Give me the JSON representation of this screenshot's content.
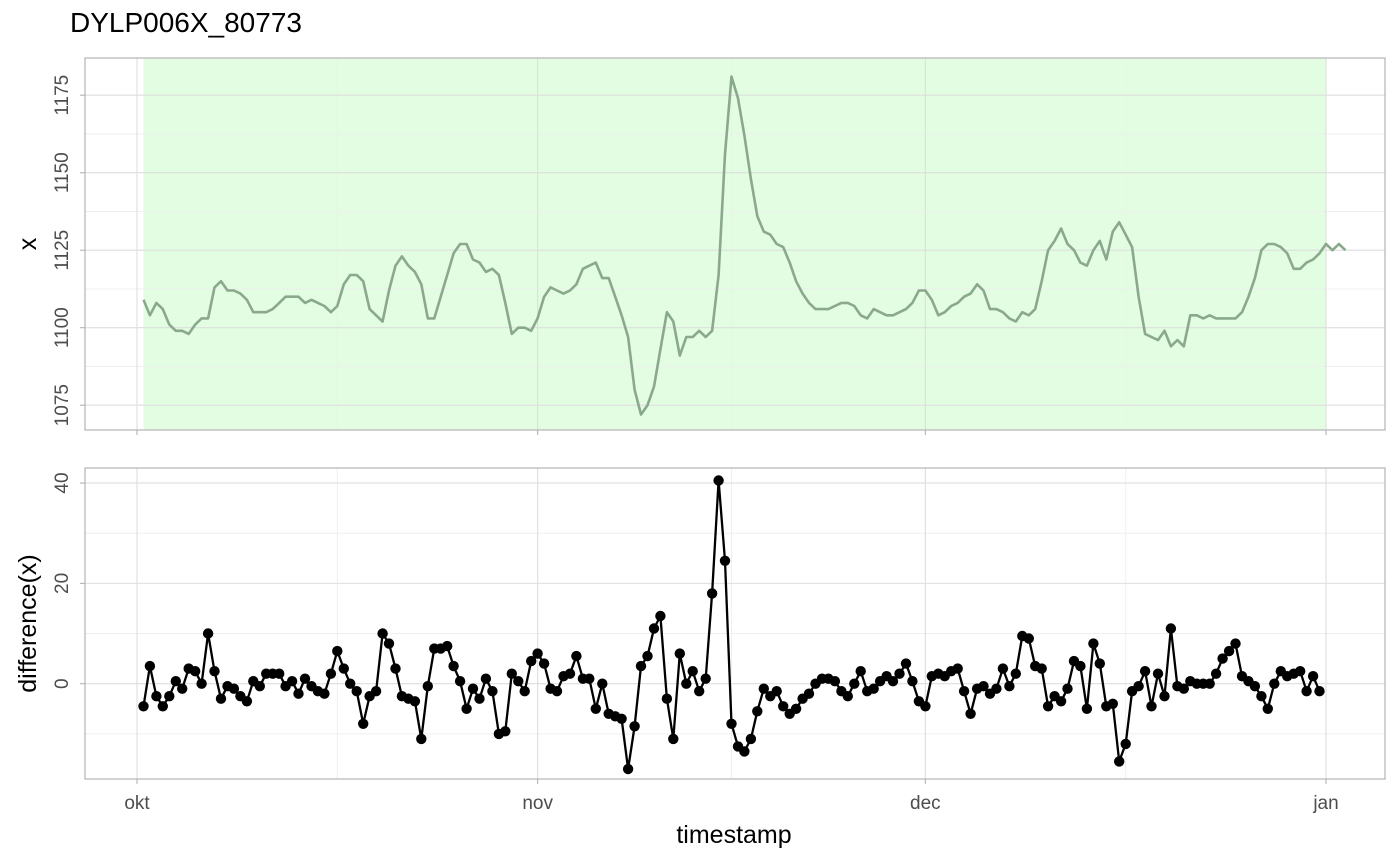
{
  "chart_data": {
    "type": "line",
    "title": "DYLP006X_80773",
    "xlabel": "timestamp",
    "x_ticks": [
      {
        "label": "okt",
        "date": "2023-10-01"
      },
      {
        "label": "nov",
        "date": "2023-11-01"
      },
      {
        "label": "dec",
        "date": "2023-12-01"
      },
      {
        "label": "jan",
        "date": "2024-01-01"
      }
    ],
    "x_start": "2023-10-01T12:00",
    "x_step_hours": 12,
    "grid": true,
    "colors": {
      "line": "#8aa98a",
      "shade": "#e2fde2",
      "points": "#000000",
      "grid_major": "#dedede",
      "grid_minor": "#efefef",
      "panel_border": "#b3b3b3",
      "tick_text": "#4d4d4d"
    },
    "panels": [
      {
        "ylabel": "x",
        "ylim": [
          1067,
          1187
        ],
        "y_ticks": [
          1075,
          1100,
          1125,
          1150,
          1175
        ],
        "shaded_region": {
          "from": "2023-10-01T12:00",
          "to": "2024-01-01T00:00"
        },
        "series": [
          {
            "values": [
              1109,
              1104,
              1108,
              1106,
              1101,
              1099,
              1099,
              1098,
              1101,
              1103,
              1103,
              1113,
              1115,
              1112,
              1112,
              1111,
              1109,
              1105,
              1105,
              1105,
              1106,
              1108,
              1110,
              1110,
              1110,
              1108,
              1109,
              1108,
              1107,
              1105,
              1107,
              1114,
              1117,
              1117,
              1115,
              1106,
              1104,
              1102,
              1112,
              1120,
              1123,
              1120,
              1118,
              1114,
              1103,
              1103,
              1110,
              1117,
              1124,
              1127,
              1127,
              1122,
              1121,
              1118,
              1119,
              1117,
              1108,
              1098,
              1100,
              1100,
              1099,
              1103,
              1110,
              1113,
              1112,
              1111,
              1112,
              1114,
              1119,
              1120,
              1121,
              1116,
              1116,
              1110,
              1104,
              1097,
              1080,
              1072,
              1075,
              1081,
              1093,
              1105,
              1102,
              1091,
              1097,
              1097,
              1099,
              1097,
              1099,
              1117,
              1156,
              1181,
              1174,
              1162,
              1148,
              1136,
              1131,
              1130,
              1127,
              1126,
              1121,
              1115,
              1111,
              1108,
              1106,
              1106,
              1106,
              1107,
              1108,
              1108,
              1107,
              1104,
              1103,
              1106,
              1105,
              1104,
              1104,
              1105,
              1106,
              1108,
              1112,
              1112,
              1109,
              1104,
              1105,
              1107,
              1108,
              1110,
              1111,
              1114,
              1112,
              1106,
              1106,
              1105,
              1103,
              1102,
              1105,
              1104,
              1106,
              1115,
              1125,
              1128,
              1132,
              1127,
              1125,
              1121,
              1120,
              1125,
              1128,
              1122,
              1131,
              1134,
              1130,
              1126,
              1110,
              1098,
              1097,
              1096,
              1099,
              1094,
              1096,
              1094,
              1104,
              1104,
              1103,
              1104,
              1103,
              1103,
              1103,
              1103,
              1105,
              1110,
              1116,
              1125,
              1127,
              1127,
              1126,
              1124,
              1119,
              1119,
              1121,
              1122,
              1124,
              1127,
              1125,
              1127,
              1125
            ]
          }
        ]
      },
      {
        "ylabel": "difference(x)",
        "ylim": [
          -19,
          43
        ],
        "y_ticks": [
          0,
          20,
          40
        ],
        "series": [
          {
            "values": [
              -4.5,
              3.5,
              -2.5,
              -4.5,
              -2.5,
              0.5,
              -1,
              3,
              2.5,
              0,
              10,
              2.5,
              -3,
              -0.5,
              -1,
              -2.5,
              -3.5,
              0.5,
              -0.5,
              2,
              2,
              2,
              -0.5,
              0.5,
              -2,
              1,
              -0.5,
              -1.5,
              -2,
              2,
              6.5,
              3,
              0,
              -1.5,
              -8,
              -2.5,
              -1.5,
              10,
              8,
              3,
              -2.5,
              -3,
              -3.5,
              -11,
              -0.5,
              7,
              7,
              7.5,
              3.5,
              0.5,
              -5,
              -1,
              -3,
              1,
              -1.5,
              -10,
              -9.5,
              2,
              0.5,
              -1.5,
              4.5,
              6,
              4,
              -1,
              -1.5,
              1.5,
              2,
              5.5,
              1,
              1,
              -5,
              0,
              -6,
              -6.5,
              -7,
              -17,
              -8.5,
              3.5,
              5.5,
              11,
              13.5,
              -3,
              -11,
              6,
              0,
              2.5,
              -1.5,
              1,
              18,
              40.5,
              24.5,
              -8,
              -12.5,
              -13.5,
              -11,
              -5.5,
              -1,
              -2.5,
              -1.5,
              -4.5,
              -6,
              -5,
              -3,
              -2,
              0,
              1,
              1,
              0.5,
              -1.5,
              -2.5,
              0,
              2.5,
              -1.5,
              -1,
              0.5,
              1.5,
              0.5,
              2,
              4,
              0.5,
              -3.5,
              -4.5,
              1.5,
              2,
              1.5,
              2.5,
              3,
              -1.5,
              -6,
              -1,
              -0.5,
              -2,
              -1,
              3,
              -0.5,
              2,
              9.5,
              9,
              3.5,
              3,
              -4.5,
              -2.5,
              -3.5,
              -1,
              4.5,
              3.5,
              -5,
              8,
              4,
              -4.5,
              -4,
              -15.5,
              -12,
              -1.5,
              -0.5,
              2.5,
              -4.5,
              2,
              -2.5,
              11,
              -0.5,
              -1,
              0.5,
              0,
              0,
              0,
              2,
              5,
              6.5,
              8,
              1.5,
              0.5,
              -0.5,
              -2.5,
              -5,
              0,
              2.5,
              1.5,
              2,
              2.5,
              -1.5,
              1.5,
              -1.5
            ]
          }
        ]
      }
    ]
  }
}
